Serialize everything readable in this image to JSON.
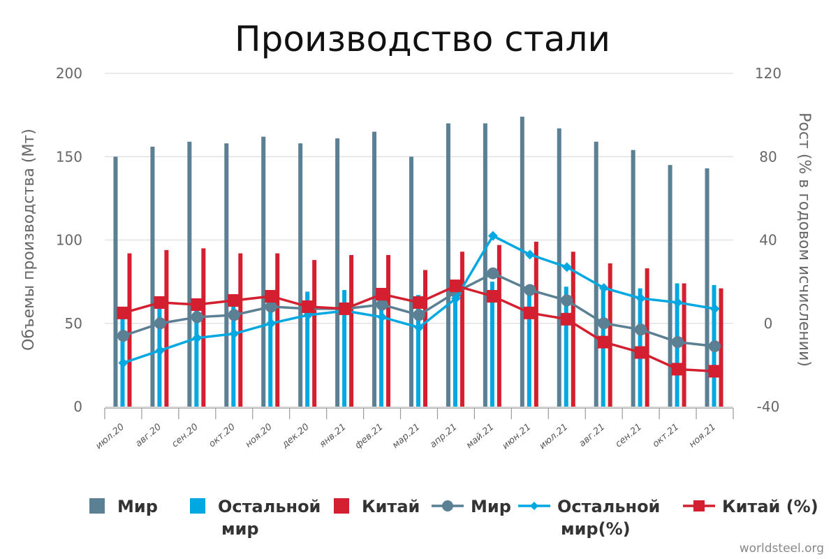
{
  "chart_data": {
    "type": "bar",
    "title": "Производство стали",
    "ylabel": "Объемы производства (Мт)",
    "y2label": "Рост (% в годовом исчислении)",
    "ylim": [
      0,
      200
    ],
    "y2lim": [
      -40,
      120
    ],
    "yticks": [
      0,
      50,
      100,
      150,
      200
    ],
    "y2ticks": [
      -40,
      0,
      40,
      80,
      120
    ],
    "grid": true,
    "legend_position": "bottom",
    "categories": [
      "июл.20",
      "авг.20",
      "сен.20",
      "окт.20",
      "ноя.20",
      "дек.20",
      "янв.21",
      "фев.21",
      "мар.21",
      "апр.21",
      "май.21",
      "июн.21",
      "июл.21",
      "авг.21",
      "сен.21",
      "окт.21",
      "ноя.21"
    ],
    "bar_series": [
      {
        "name": "Мир",
        "color": "#5b7f93",
        "axis": "left",
        "values": [
          150,
          156,
          159,
          158,
          162,
          158,
          161,
          165,
          150,
          170,
          170,
          174,
          167,
          159,
          154,
          145,
          143
        ]
      },
      {
        "name": "Остальной мир",
        "color": "#00a8e1",
        "axis": "left",
        "values": [
          58,
          63,
          64,
          66,
          69,
          69,
          70,
          66,
          67,
          72,
          75,
          73,
          72,
          71,
          71,
          74,
          73
        ]
      },
      {
        "name": "Китай",
        "color": "#d31f2f",
        "axis": "left",
        "values": [
          92,
          94,
          95,
          92,
          92,
          88,
          91,
          91,
          82,
          93,
          97,
          99,
          93,
          86,
          83,
          74,
          71
        ]
      }
    ],
    "line_series": [
      {
        "name": "Мир",
        "color": "#5b7f93",
        "marker": "circle",
        "axis": "right",
        "values": [
          -6,
          0,
          3,
          4,
          8,
          7,
          7,
          9,
          4,
          15,
          24,
          16,
          11,
          0,
          -3,
          -9,
          -11
        ]
      },
      {
        "name": "Остальной мир(%)",
        "color": "#00a8e1",
        "marker": "diamond",
        "axis": "right",
        "values": [
          -19,
          -13,
          -7,
          -5,
          0,
          4,
          6,
          3,
          -2,
          12,
          42,
          33,
          27,
          17,
          12,
          10,
          7
        ]
      },
      {
        "name": "Китай (%)",
        "color": "#d31f2f",
        "marker": "square",
        "axis": "right",
        "values": [
          5,
          10,
          9,
          11,
          13,
          8,
          7,
          14,
          10,
          18,
          13,
          5,
          2,
          -9,
          -14,
          -22,
          -23
        ]
      }
    ],
    "legend": [
      {
        "label_line1": "Мир",
        "label_line2": "",
        "color": "#5b7f93",
        "kind": "bar"
      },
      {
        "label_line1": "Остальной",
        "label_line2": "мир",
        "color": "#00a8e1",
        "kind": "bar"
      },
      {
        "label_line1": "Китай",
        "label_line2": "",
        "color": "#d31f2f",
        "kind": "bar"
      },
      {
        "label_line1": "Мир",
        "label_line2": "",
        "color": "#5b7f93",
        "kind": "line-circle"
      },
      {
        "label_line1": "Остальной",
        "label_line2": "мир(%)",
        "color": "#00a8e1",
        "kind": "line-diamond"
      },
      {
        "label_line1": "Китай (%)",
        "label_line2": "",
        "color": "#d31f2f",
        "kind": "line-square"
      }
    ]
  },
  "source": "worldsteel.org"
}
